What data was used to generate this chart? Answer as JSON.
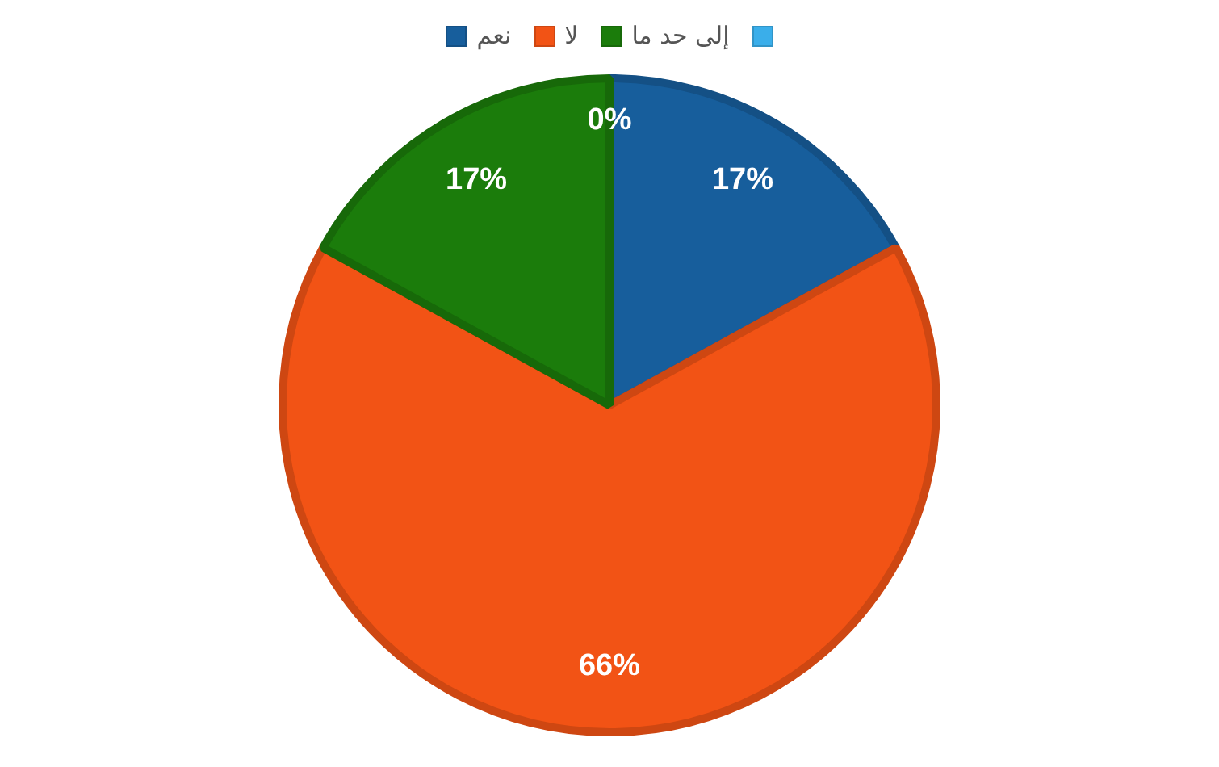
{
  "chart_data": {
    "type": "pie",
    "categories": [
      "نعم",
      "لا",
      "إلى حد ما",
      null
    ],
    "values": [
      17,
      66,
      17,
      0
    ],
    "colors": [
      "#175e9c",
      "#f25315",
      "#1b7c0b",
      "#3aaeea"
    ],
    "value_labels": [
      "17%",
      "66%",
      "17%",
      "0%"
    ],
    "legend": "top"
  }
}
